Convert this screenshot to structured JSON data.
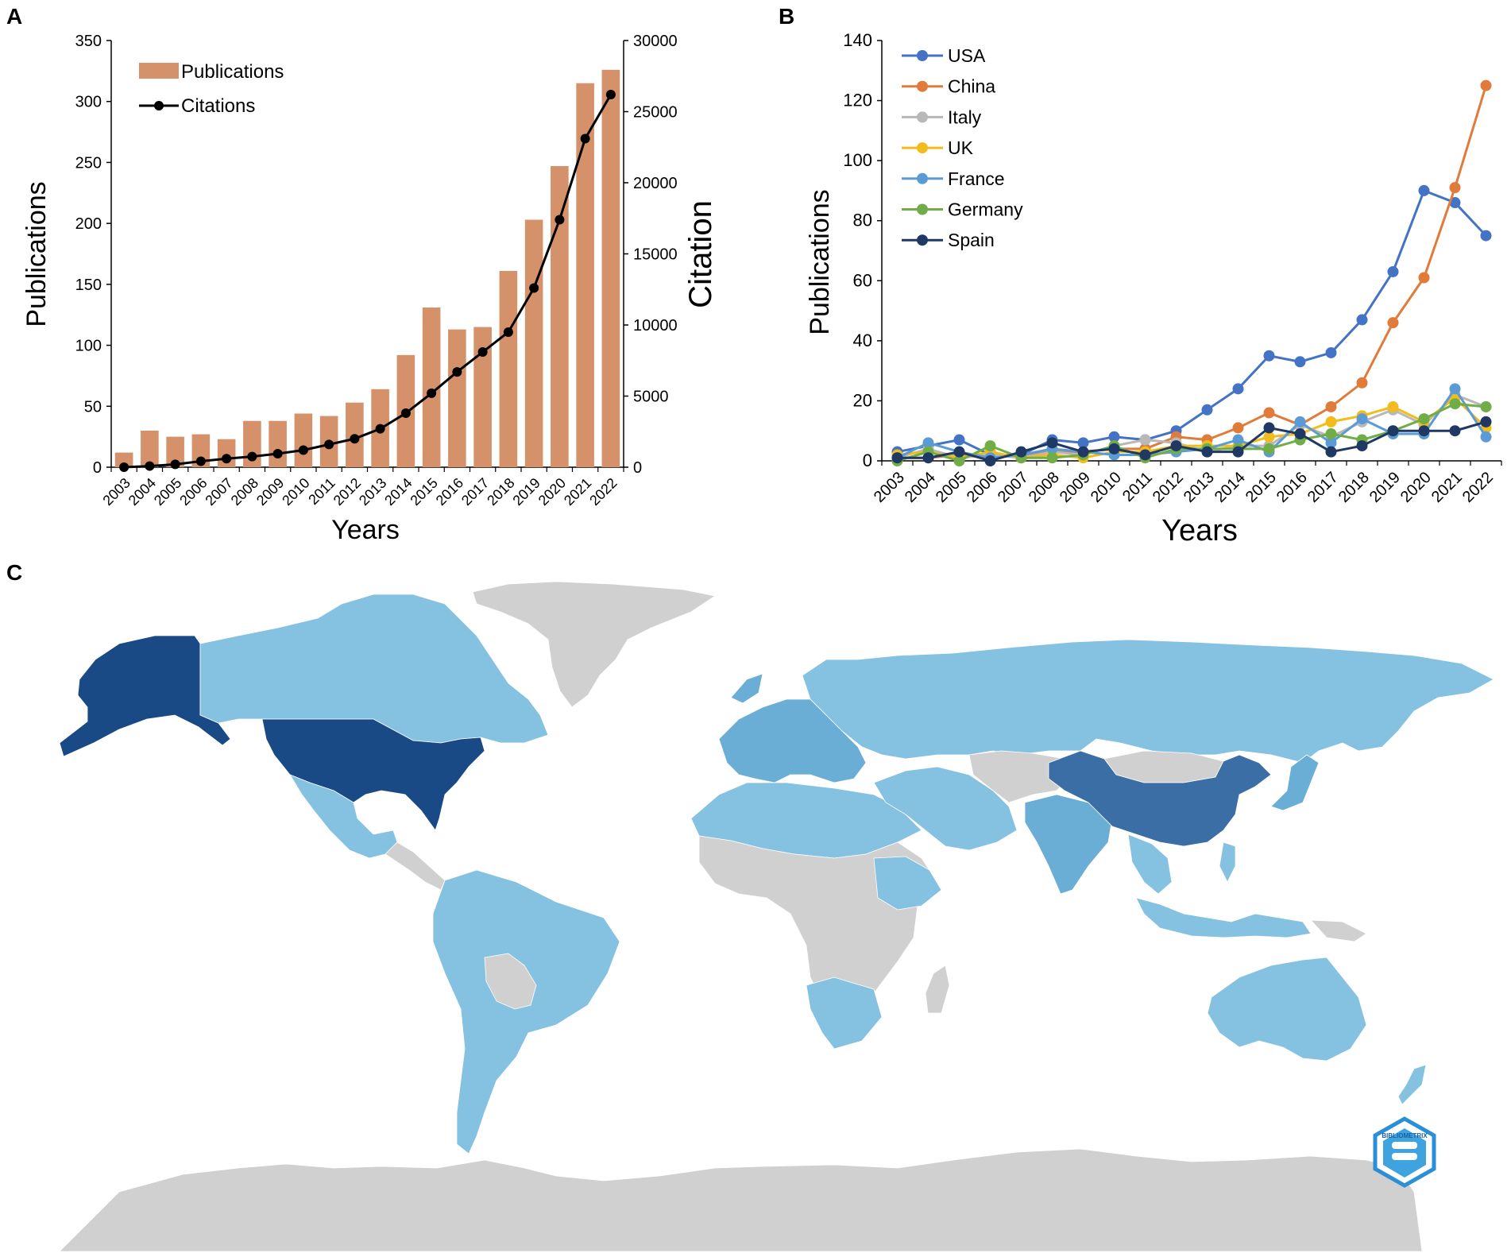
{
  "panels": {
    "a": {
      "letter": "A"
    },
    "b": {
      "letter": "B"
    },
    "c": {
      "letter": "C"
    }
  },
  "colors": {
    "bar": "#d4916a",
    "citations": "#000000",
    "usa": "#4472c4",
    "china": "#e07b39",
    "italy": "#b8b8b8",
    "uk": "#f2bc1c",
    "france": "#5b9bd5",
    "germany": "#70ad47",
    "spain": "#1f3864",
    "map_none": "#d0d0d0",
    "map_low": "#85c1e0",
    "map_mid": "#6aaed6",
    "map_high": "#3a6ea5",
    "map_top": "#1a4a86"
  },
  "chart_data": [
    {
      "panel": "A",
      "type": "bar",
      "categories": [
        "2003",
        "2004",
        "2005",
        "2006",
        "2007",
        "2008",
        "2009",
        "2010",
        "2011",
        "2012",
        "2013",
        "2014",
        "2015",
        "2016",
        "2017",
        "2018",
        "2019",
        "2020",
        "2021",
        "2022"
      ],
      "series": [
        {
          "name": "Publications",
          "type": "bar",
          "axis": "left",
          "values": [
            12,
            30,
            25,
            27,
            23,
            38,
            38,
            44,
            42,
            53,
            64,
            92,
            131,
            113,
            115,
            161,
            203,
            247,
            315,
            326
          ]
        },
        {
          "name": "Citations",
          "type": "line",
          "axis": "right",
          "values": [
            0,
            80,
            200,
            420,
            600,
            750,
            950,
            1200,
            1600,
            2000,
            2700,
            3800,
            5200,
            6700,
            8100,
            9500,
            12600,
            17400,
            23100,
            26200
          ]
        }
      ],
      "ylabel": "Publications",
      "ylabel_right": "Citation",
      "xlabel": "Years",
      "ylim": [
        0,
        350
      ],
      "yticks": [
        0,
        50,
        100,
        150,
        200,
        250,
        300,
        350
      ],
      "ylim_right": [
        0,
        30000
      ],
      "yticks_right": [
        0,
        5000,
        10000,
        15000,
        20000,
        25000,
        30000
      ],
      "legend_position": "top-left"
    },
    {
      "panel": "B",
      "type": "line",
      "categories": [
        "2003",
        "2004",
        "2005",
        "2006",
        "2007",
        "2008",
        "2009",
        "2010",
        "2011",
        "2012",
        "2013",
        "2014",
        "2015",
        "2016",
        "2017",
        "2018",
        "2019",
        "2020",
        "2021",
        "2022"
      ],
      "series": [
        {
          "name": "USA",
          "color_key": "usa",
          "values": [
            3,
            5,
            7,
            2,
            2,
            7,
            6,
            8,
            7,
            10,
            17,
            24,
            35,
            33,
            36,
            47,
            63,
            90,
            86,
            75
          ]
        },
        {
          "name": "China",
          "color_key": "china",
          "values": [
            1,
            1,
            2,
            1,
            2,
            3,
            3,
            4,
            4,
            8,
            7,
            11,
            16,
            12,
            18,
            26,
            46,
            61,
            91,
            125
          ]
        },
        {
          "name": "Italy",
          "color_key": "italy",
          "values": [
            1,
            4,
            1,
            2,
            1,
            3,
            2,
            5,
            7,
            6,
            3,
            5,
            5,
            12,
            8,
            13,
            17,
            12,
            22,
            18
          ]
        },
        {
          "name": "UK",
          "color_key": "uk",
          "values": [
            2,
            3,
            1,
            3,
            1,
            2,
            1,
            3,
            3,
            5,
            5,
            5,
            8,
            9,
            13,
            15,
            18,
            13,
            21,
            11
          ]
        },
        {
          "name": "France",
          "color_key": "france",
          "values": [
            1,
            6,
            3,
            1,
            2,
            4,
            3,
            2,
            2,
            3,
            4,
            7,
            3,
            13,
            6,
            14,
            9,
            9,
            24,
            8
          ]
        },
        {
          "name": "Germany",
          "color_key": "germany",
          "values": [
            0,
            3,
            0,
            5,
            1,
            1,
            2,
            5,
            1,
            4,
            4,
            4,
            4,
            7,
            9,
            7,
            10,
            14,
            19,
            18
          ]
        },
        {
          "name": "Spain",
          "color_key": "spain",
          "values": [
            1,
            1,
            3,
            0,
            3,
            6,
            3,
            4,
            2,
            5,
            3,
            3,
            11,
            9,
            3,
            5,
            10,
            10,
            10,
            13
          ]
        }
      ],
      "ylabel": "Publications",
      "xlabel": "Years",
      "ylim": [
        0,
        140
      ],
      "yticks": [
        0,
        20,
        40,
        60,
        80,
        100,
        120,
        140
      ],
      "legend_position": "top-left"
    }
  ],
  "map": {
    "watermark_text": "BIBLIOMETRIX",
    "regions": [
      {
        "name": "Greenland",
        "level": "none"
      },
      {
        "name": "Antarctica",
        "level": "none"
      },
      {
        "name": "Alaska",
        "level": "top"
      },
      {
        "name": "Canada",
        "level": "low"
      },
      {
        "name": "USA",
        "level": "top"
      },
      {
        "name": "Mexico",
        "level": "low"
      },
      {
        "name": "Central America",
        "level": "none"
      },
      {
        "name": "South America",
        "level": "low"
      },
      {
        "name": "Bolivia",
        "level": "none"
      },
      {
        "name": "Europe",
        "level": "mid"
      },
      {
        "name": "Russia",
        "level": "low"
      },
      {
        "name": "North Africa",
        "level": "low"
      },
      {
        "name": "Sub-Saharan Africa",
        "level": "none"
      },
      {
        "name": "Ethiopia",
        "level": "low"
      },
      {
        "name": "South Africa",
        "level": "low"
      },
      {
        "name": "Madagascar",
        "level": "none"
      },
      {
        "name": "Middle East",
        "level": "low"
      },
      {
        "name": "Central Asia",
        "level": "none"
      },
      {
        "name": "India",
        "level": "mid"
      },
      {
        "name": "Mongolia",
        "level": "none"
      },
      {
        "name": "China",
        "level": "high"
      },
      {
        "name": "Japan",
        "level": "mid"
      },
      {
        "name": "Southeast Asia",
        "level": "low"
      },
      {
        "name": "Indonesia",
        "level": "low"
      },
      {
        "name": "Papua New Guinea",
        "level": "none"
      },
      {
        "name": "Australia",
        "level": "low"
      },
      {
        "name": "New Zealand",
        "level": "low"
      }
    ]
  }
}
